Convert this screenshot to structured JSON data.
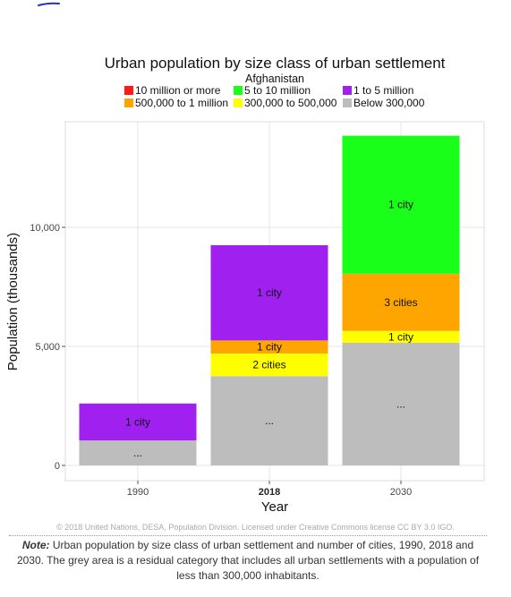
{
  "colors": {
    "10m_plus": "#ff1a1a",
    "5_10m": "#1aff1a",
    "1_5m": "#a020f0",
    "500k_1m": "#ffa500",
    "300k_500k": "#ffff00",
    "below_300k": "#bdbdbd",
    "grid": "#e6e6e6"
  },
  "chart_data": {
    "type": "bar",
    "stacked": true,
    "title": "Urban population by size class of urban settlement",
    "subtitle": "Afghanistan",
    "xlabel": "Year",
    "ylabel": "Population (thousands)",
    "ylim": [
      0,
      14500
    ],
    "yticks": [
      {
        "value": 0,
        "label": "0"
      },
      {
        "value": 5000,
        "label": "5,000"
      },
      {
        "value": 10000,
        "label": "10,000"
      }
    ],
    "grid": true,
    "legend_position": "top",
    "categories": [
      "1990",
      "2018",
      "2030"
    ],
    "bold_category": "2018",
    "series": [
      {
        "name": "Below 300,000",
        "color_key": "below_300k",
        "values": [
          1050,
          3750,
          5150
        ],
        "labels": [
          "...",
          "...",
          "..."
        ]
      },
      {
        "name": "300,000 to 500,000",
        "color_key": "300k_500k",
        "values": [
          0,
          950,
          500
        ],
        "labels": [
          "",
          "2 cities",
          "1 city"
        ]
      },
      {
        "name": "500,000 to 1 million",
        "color_key": "500k_1m",
        "values": [
          0,
          550,
          2400
        ],
        "labels": [
          "",
          "1 city",
          "3 cities"
        ]
      },
      {
        "name": "1 to 5 million",
        "color_key": "1_5m",
        "values": [
          1550,
          4000,
          0
        ],
        "labels": [
          "1 city",
          "1 city",
          ""
        ]
      },
      {
        "name": "5 to 10 million",
        "color_key": "5_10m",
        "values": [
          0,
          0,
          5800
        ],
        "labels": [
          "",
          "",
          "1 city"
        ]
      },
      {
        "name": "10 million or more",
        "color_key": "10m_plus",
        "values": [
          0,
          0,
          0
        ],
        "labels": [
          "",
          "",
          ""
        ]
      }
    ],
    "legend": [
      {
        "label": "10 million or more",
        "color_key": "10m_plus"
      },
      {
        "label": "5 to 10 million",
        "color_key": "5_10m"
      },
      {
        "label": "1 to 5 million",
        "color_key": "1_5m"
      },
      {
        "label": "500,000 to 1 million",
        "color_key": "500k_1m"
      },
      {
        "label": "300,000 to 500,000",
        "color_key": "300k_500k"
      },
      {
        "label": "Below 300,000",
        "color_key": "below_300k"
      }
    ]
  },
  "credit": "© 2018 United Nations, DESA, Population Division. Licensed under Creative Commons license CC BY 3.0 IGO.",
  "note": {
    "label": "Note:",
    "text": " Urban population by size class of urban settlement and number of cities, 1990, 2018 and 2030. The grey area is a residual category that includes all urban settlements with a population of less than 300,000 inhabitants."
  }
}
